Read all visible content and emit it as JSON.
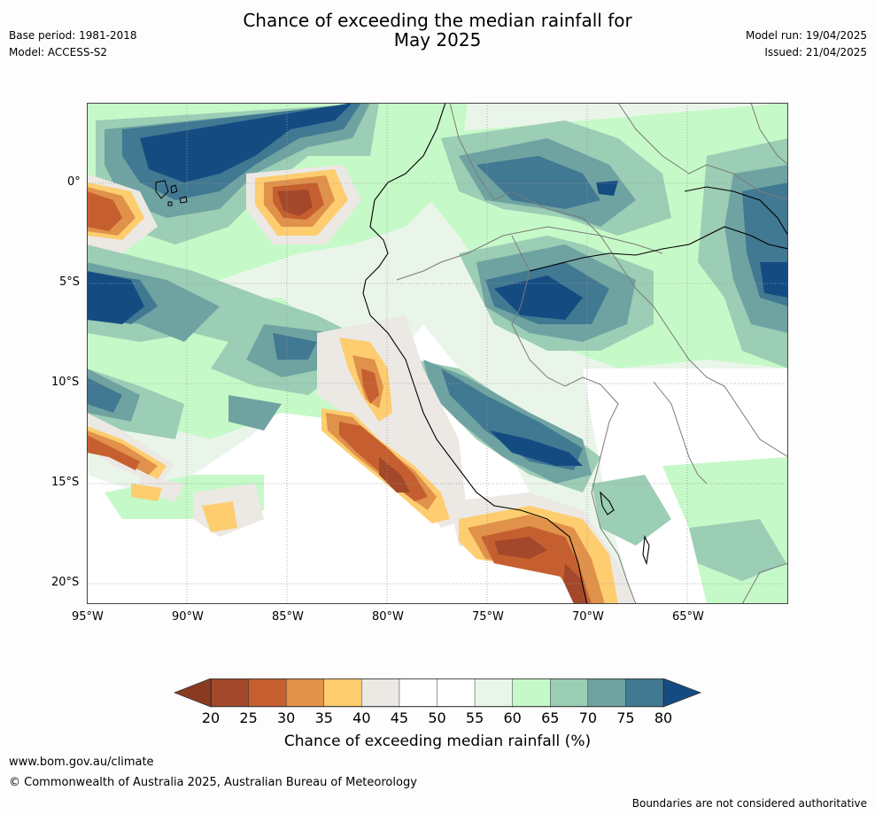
{
  "header": {
    "title_line1": "Chance of exceeding the median rainfall for",
    "title_line2": "May 2025",
    "base_period": "Base period: 1981-2018",
    "model": "Model: ACCESS-S2",
    "model_run": "Model run: 19/04/2025",
    "issued": "Issued: 21/04/2025"
  },
  "map": {
    "lat_labels": [
      "0°",
      "5°S",
      "10°S",
      "15°S",
      "20°S"
    ],
    "lon_labels": [
      "95°W",
      "90°W",
      "85°W",
      "80°W",
      "75°W",
      "70°W",
      "65°W"
    ],
    "colors": {
      "ocean_base": "#ffffff",
      "c20": "#a3482a",
      "c25": "#c65f2f",
      "c30": "#e0914a",
      "c35": "#fdcd6f",
      "c40": "#ece8e4",
      "c45": "#ffffff",
      "c55": "#eaf5ea",
      "c60": "#c6f9c8",
      "c65": "#9ccdb5",
      "c70": "#6fa3a2",
      "c75": "#417892",
      "c80": "#144c82"
    }
  },
  "colorbar": {
    "ticks": [
      "20",
      "25",
      "30",
      "35",
      "40",
      "45",
      "50",
      "55",
      "60",
      "65",
      "70",
      "75",
      "80"
    ],
    "label": "Chance of exceeding median rainfall (%)",
    "colors": [
      "#a3482a",
      "#c65f2f",
      "#e0914a",
      "#fdcd6f",
      "#ece8e4",
      "#ffffff",
      "#ffffff",
      "#eaf5ea",
      "#c6f9c8",
      "#9ccdb5",
      "#6fa3a2",
      "#417892"
    ],
    "low_arrow_color": "#8b3a22",
    "high_arrow_color": "#144c82"
  },
  "footer": {
    "url": "www.bom.gov.au/climate",
    "copyright": "© Commonwealth of Australia 2025, Australian Bureau of Meteorology",
    "disclaimer": "Boundaries are not considered authoritative"
  }
}
